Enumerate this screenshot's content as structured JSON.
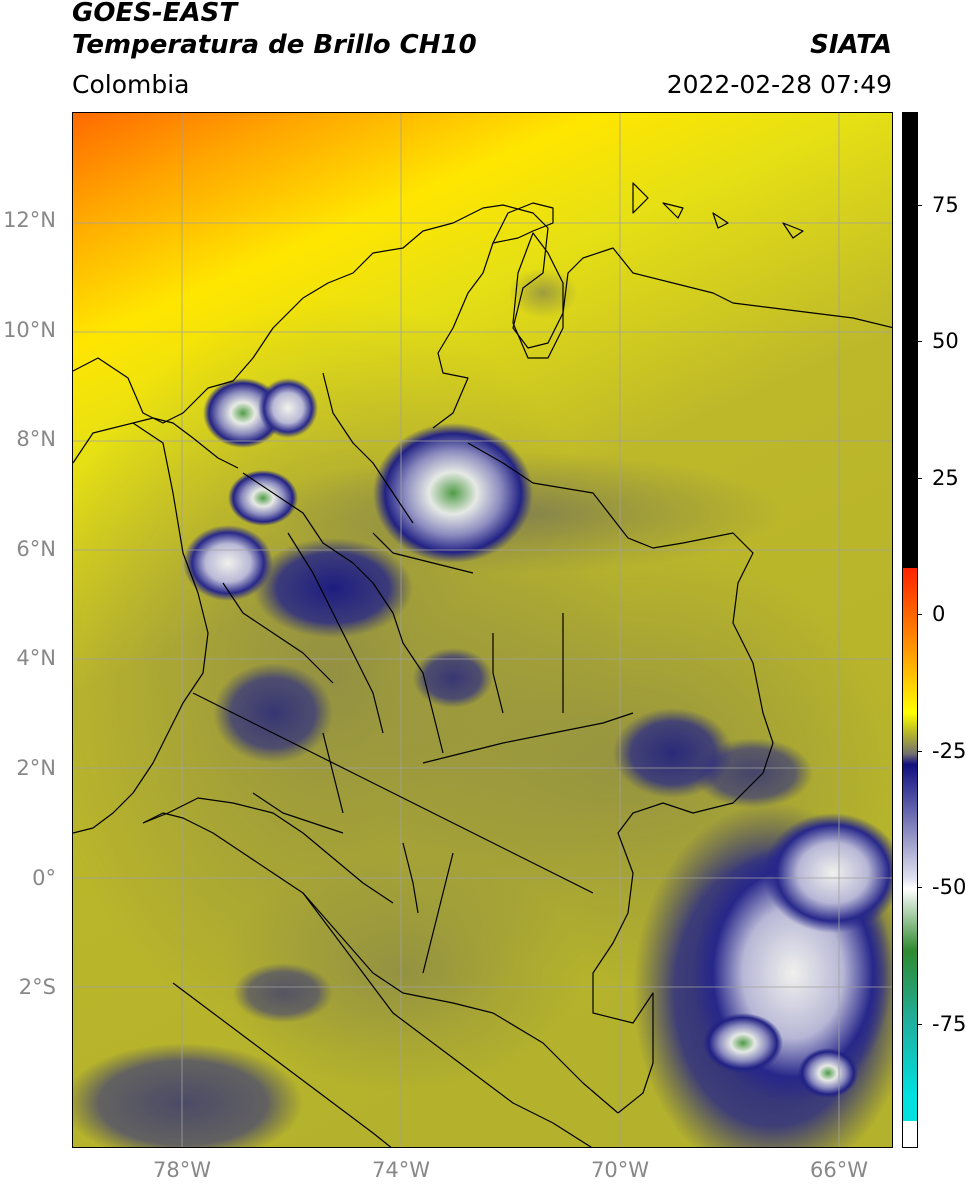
{
  "header": {
    "satellite": "GOES-EAST",
    "product": "Temperatura de Brillo CH10",
    "source": "SIATA",
    "region": "Colombia",
    "timestamp": "2022-02-28 07:49"
  },
  "axes": {
    "lat_labels": [
      "12°N",
      "10°N",
      "8°N",
      "6°N",
      "4°N",
      "2°N",
      "0°",
      "2°S"
    ],
    "lon_labels": [
      "78°W",
      "74°W",
      "70°W",
      "66°W"
    ],
    "grid_color": "#a0a0a0"
  },
  "colorbar": {
    "tick_labels": [
      "75",
      "50",
      "25",
      "0",
      "-25",
      "-50",
      "-75"
    ],
    "colors": {
      "warm_top": "#000000",
      "red": "#ff2200",
      "orange": "#ff9900",
      "yellow": "#ffff00",
      "olive": "#b5b52a",
      "gray": "#707070",
      "navy": "#101080",
      "light": "#e0e0f0",
      "green": "#2e8a2e",
      "teal": "#20b0a0",
      "cyan": "#00e0e0",
      "white": "#ffffff"
    }
  }
}
